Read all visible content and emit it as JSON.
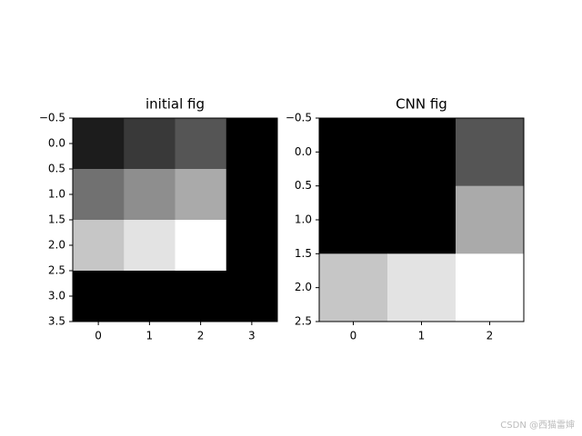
{
  "chart_data": [
    {
      "type": "heatmap",
      "title": "initial fig",
      "cmap": "gray",
      "values": [
        [
          1,
          2,
          3,
          0
        ],
        [
          4,
          5,
          6,
          0
        ],
        [
          7,
          8,
          9,
          0
        ],
        [
          0,
          0,
          0,
          0
        ]
      ],
      "xlim": [
        -0.5,
        3.5
      ],
      "ylim": [
        3.5,
        -0.5
      ],
      "xticks": [
        0,
        1,
        2,
        3
      ],
      "yticks": [
        {
          "value": -0.5,
          "label": "−0.5"
        },
        {
          "value": 0,
          "label": "0.0"
        },
        {
          "value": 0.5,
          "label": "0.5"
        },
        {
          "value": 1,
          "label": "1.0"
        },
        {
          "value": 1.5,
          "label": "1.5"
        },
        {
          "value": 2,
          "label": "2.0"
        },
        {
          "value": 2.5,
          "label": "2.5"
        },
        {
          "value": 3,
          "label": "3.0"
        },
        {
          "value": 3.5,
          "label": "3.5"
        }
      ]
    },
    {
      "type": "heatmap",
      "title": "CNN fig",
      "cmap": "gray",
      "values": [
        [
          0,
          0,
          3
        ],
        [
          0,
          0,
          6
        ],
        [
          7,
          8,
          9
        ]
      ],
      "xlim": [
        -0.5,
        2.5
      ],
      "ylim": [
        2.5,
        -0.5
      ],
      "xticks": [
        0,
        1,
        2
      ],
      "yticks": [
        {
          "value": -0.5,
          "label": "−0.5"
        },
        {
          "value": 0,
          "label": "0.0"
        },
        {
          "value": 0.5,
          "label": "0.5"
        },
        {
          "value": 1,
          "label": "1.0"
        },
        {
          "value": 1.5,
          "label": "1.5"
        },
        {
          "value": 2,
          "label": "2.0"
        },
        {
          "value": 2.5,
          "label": "2.5"
        }
      ]
    }
  ],
  "watermark": "CSDN @西猫雷婶"
}
